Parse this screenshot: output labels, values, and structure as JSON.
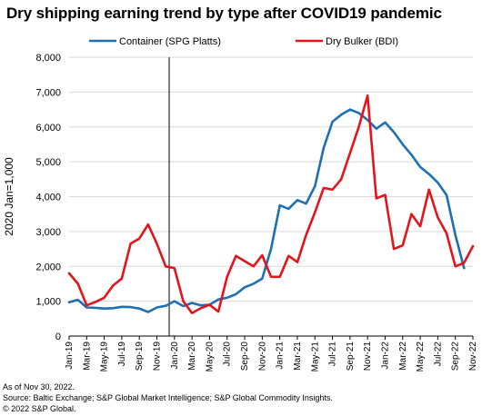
{
  "title": "Dry shipping earning trend by type after COVID19 pandemic",
  "footnotes": [
    "As of Nov 30, 2022.",
    "Source: Baltic Exchange; S&P Global Market Intelligence; S&P Global Commodity Insights.",
    "© 2022 S&P Global."
  ],
  "chart_data": {
    "type": "line",
    "title": "Dry shipping earning trend by type after COVID19 pandemic",
    "ylabel": "2020 Jan=1,000",
    "ylim": [
      0,
      8000
    ],
    "yticks": [
      0,
      1000,
      2000,
      3000,
      4000,
      5000,
      6000,
      7000,
      8000
    ],
    "ytick_labels": [
      "0",
      "1,000",
      "2,000",
      "3,000",
      "4,000",
      "5,000",
      "6,000",
      "7,000",
      "8,000"
    ],
    "grid": "horizontal",
    "legend_position": "top",
    "reference_line_at": "Jan-20",
    "x_tick_labels": [
      "Jan-19",
      "Mar-19",
      "May-19",
      "Jul-19",
      "Sep-19",
      "Nov-19",
      "Jan-20",
      "Mar-20",
      "May-20",
      "Jul-20",
      "Sep-20",
      "Nov-20",
      "Jan-21",
      "Mar-21",
      "May-21",
      "Jul-21",
      "Sep-21",
      "Nov-21",
      "Jan-22",
      "Mar-22",
      "May-22",
      "Jul-22",
      "Sep-22",
      "Nov-22"
    ],
    "categories": [
      "Jan-19",
      "Feb-19",
      "Mar-19",
      "Apr-19",
      "May-19",
      "Jun-19",
      "Jul-19",
      "Aug-19",
      "Sep-19",
      "Oct-19",
      "Nov-19",
      "Dec-19",
      "Jan-20",
      "Feb-20",
      "Mar-20",
      "Apr-20",
      "May-20",
      "Jun-20",
      "Jul-20",
      "Aug-20",
      "Sep-20",
      "Oct-20",
      "Nov-20",
      "Dec-20",
      "Jan-21",
      "Feb-21",
      "Mar-21",
      "Apr-21",
      "May-21",
      "Jun-21",
      "Jul-21",
      "Aug-21",
      "Sep-21",
      "Oct-21",
      "Nov-21",
      "Dec-21",
      "Jan-22",
      "Feb-22",
      "Mar-22",
      "Apr-22",
      "May-22",
      "Jun-22",
      "Jul-22",
      "Aug-22",
      "Sep-22",
      "Oct-22",
      "Nov-22"
    ],
    "series": [
      {
        "name": "Container (SPG Platts)",
        "color": "#1f6fb4",
        "values": [
          970,
          1040,
          820,
          810,
          790,
          800,
          840,
          830,
          790,
          690,
          820,
          870,
          1000,
          860,
          950,
          880,
          900,
          1050,
          1100,
          1200,
          1400,
          1500,
          1650,
          2500,
          3750,
          3650,
          3900,
          3800,
          4300,
          5400,
          6150,
          6350,
          6500,
          6400,
          6200,
          5950,
          6130,
          5850,
          5500,
          5200,
          4850,
          4650,
          4400,
          4050,
          2900,
          1950,
          null
        ]
      },
      {
        "name": "Dry Bulker (BDI)",
        "color": "#e3141b",
        "values": [
          1800,
          1500,
          880,
          980,
          1100,
          1450,
          1650,
          2650,
          2800,
          3200,
          2650,
          2000,
          1950,
          1000,
          660,
          800,
          900,
          700,
          1700,
          2300,
          2150,
          2000,
          2320,
          1700,
          1700,
          2300,
          2120,
          2900,
          3550,
          4250,
          4200,
          4500,
          5250,
          6000,
          6900,
          3950,
          4050,
          2500,
          2600,
          3500,
          3150,
          4200,
          3400,
          2950,
          2000,
          2100,
          2580
        ]
      }
    ]
  }
}
